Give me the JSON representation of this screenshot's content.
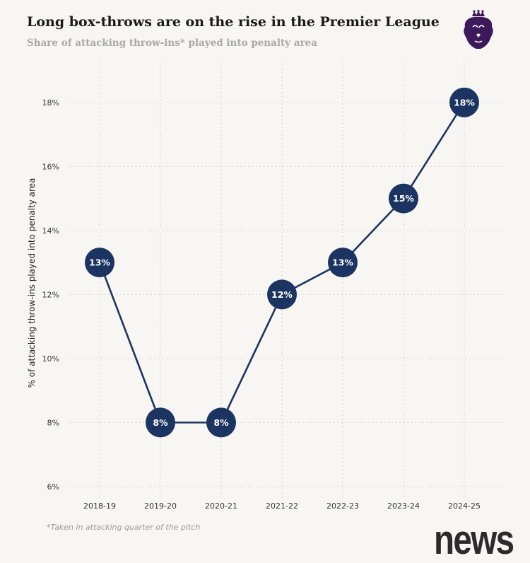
{
  "header": {
    "title": "Long box-throws are on the rise in the Premier League",
    "subtitle": "Share of attacking throw-ins* played into penalty area"
  },
  "footnote": "*Taken in attacking quarter of the pitch",
  "watermark": "news",
  "logo": {
    "icon": "premier-league-lion-icon",
    "color": "#3d195b"
  },
  "colors": {
    "line": "#1c3461",
    "marker": "#1c3461",
    "marker_text": "#ffffff",
    "grid": "#cfcfcf",
    "background": "#f7f6f2"
  },
  "chart_data": {
    "type": "line",
    "title": "Long box-throws are on the rise in the Premier League",
    "subtitle": "Share of attacking throw-ins* played into penalty area",
    "xlabel": "",
    "ylabel": "% of attacking throw-ins played into penalty area",
    "categories": [
      "2018-19",
      "2019-20",
      "2020-21",
      "2021-22",
      "2022-23",
      "2023-24",
      "2024-25"
    ],
    "series": [
      {
        "values": [
          13,
          8,
          8,
          12,
          13,
          15,
          18
        ],
        "labels": [
          "13%",
          "8%",
          "8%",
          "12%",
          "13%",
          "15%",
          "18%"
        ]
      }
    ],
    "yticks": [
      6,
      8,
      10,
      12,
      14,
      16,
      18
    ],
    "ytick_labels": [
      "6%",
      "8%",
      "10%",
      "12%",
      "14%",
      "16%",
      "18%"
    ],
    "ylim": [
      5.6,
      19.3
    ],
    "grid": true
  }
}
